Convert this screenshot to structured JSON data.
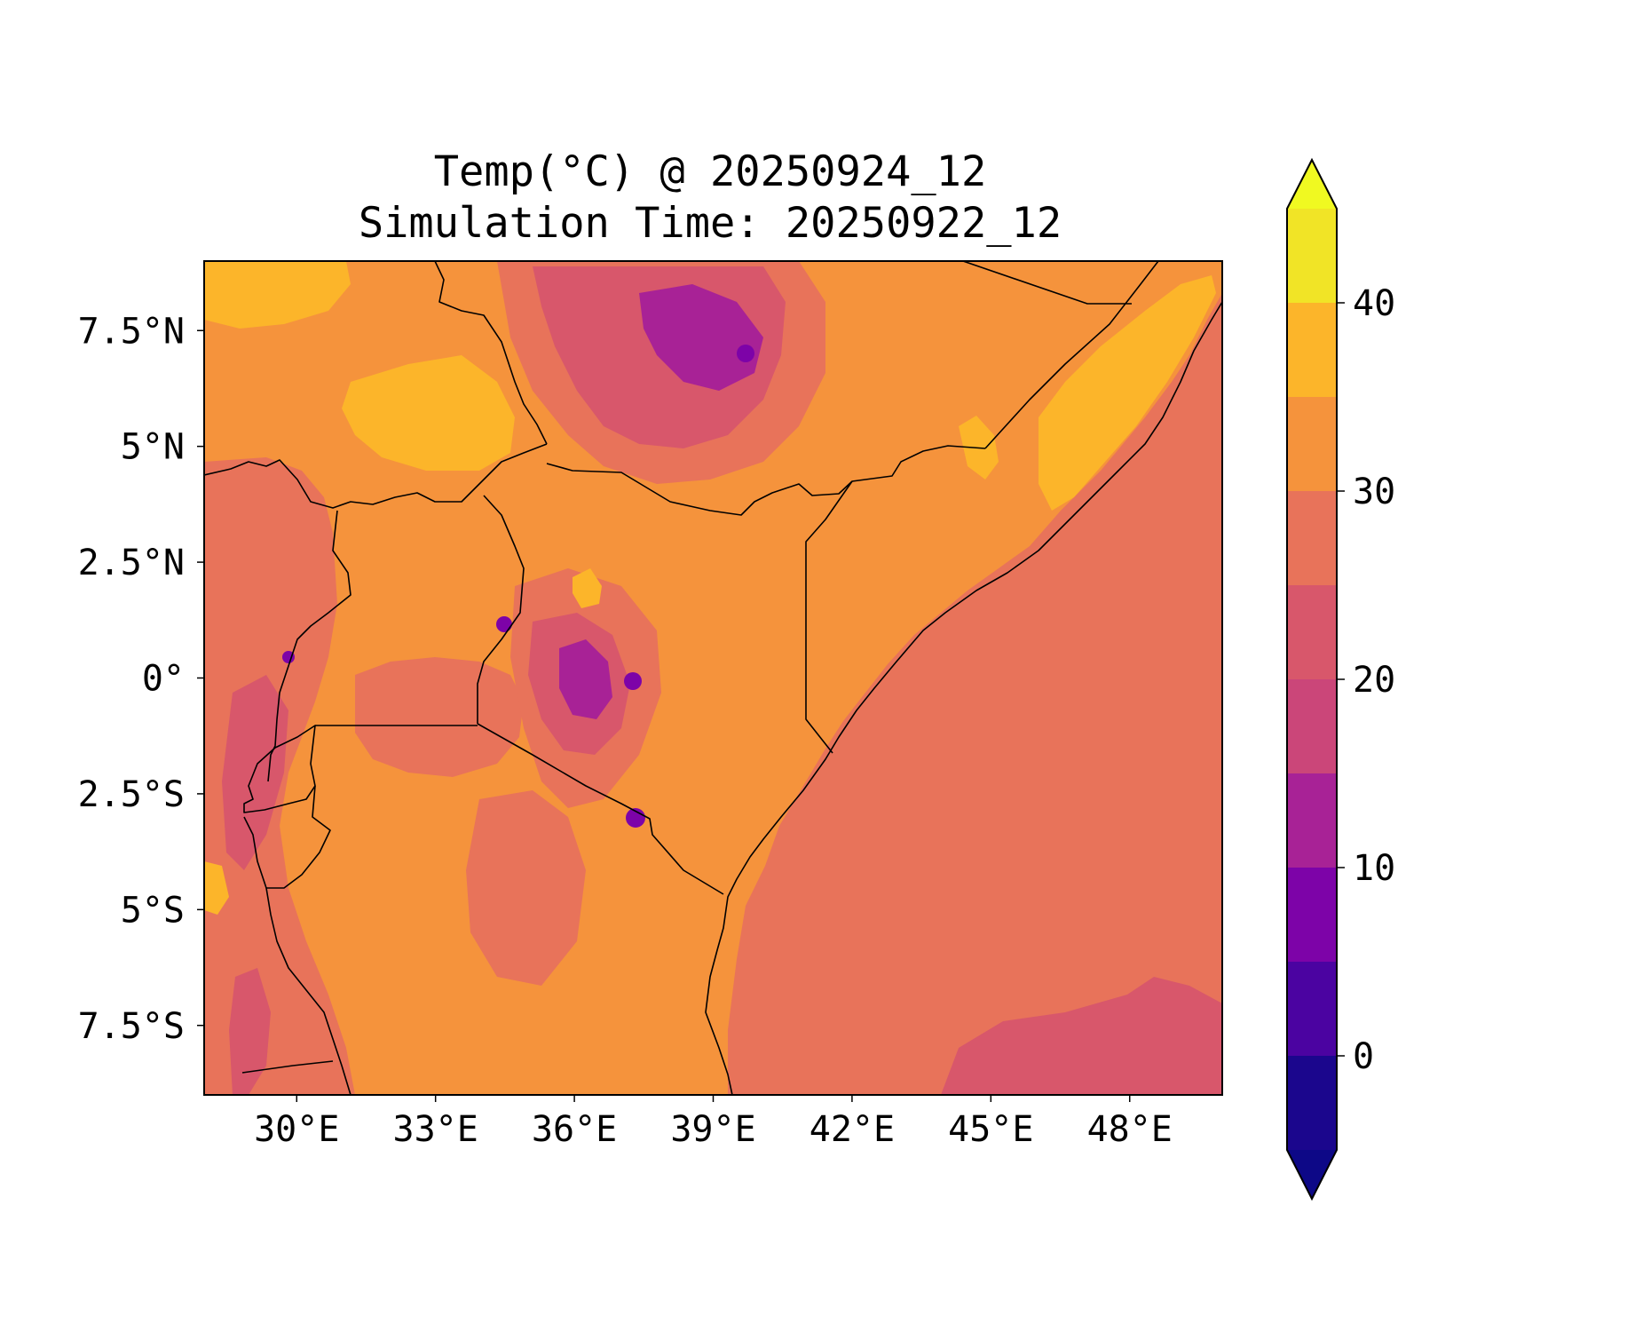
{
  "chart_data": {
    "type": "heatmap",
    "title": "Temp(°C) @ 20250924_12",
    "subtitle": "Simulation Time: 20250922_12",
    "x_ticks": [
      {
        "value": 30,
        "label": "30°E"
      },
      {
        "value": 33,
        "label": "33°E"
      },
      {
        "value": 36,
        "label": "36°E"
      },
      {
        "value": 39,
        "label": "39°E"
      },
      {
        "value": 42,
        "label": "42°E"
      },
      {
        "value": 45,
        "label": "45°E"
      },
      {
        "value": 48,
        "label": "48°E"
      }
    ],
    "y_ticks": [
      {
        "value": 7.5,
        "label": "7.5°N"
      },
      {
        "value": 5,
        "label": "5°N"
      },
      {
        "value": 2.5,
        "label": "2.5°N"
      },
      {
        "value": 0,
        "label": "0°"
      },
      {
        "value": -2.5,
        "label": "2.5°S"
      },
      {
        "value": -5,
        "label": "5°S"
      },
      {
        "value": -7.5,
        "label": "7.5°S"
      }
    ],
    "xlim": [
      28,
      50
    ],
    "ylim": [
      -9,
      9
    ],
    "colorbar": {
      "levels": [
        -5,
        0,
        5,
        10,
        15,
        20,
        25,
        30,
        35,
        40,
        45
      ],
      "colors": [
        "#1b068d",
        "#4b03a1",
        "#7d03a8",
        "#a82296",
        "#cb4679",
        "#d8576b",
        "#e8735a",
        "#f5933c",
        "#fcb52a",
        "#f1e426"
      ],
      "under_color": "#0d0887",
      "over_color": "#f0f921",
      "ticks": [
        {
          "value": 0,
          "label": "0"
        },
        {
          "value": 10,
          "label": "10"
        },
        {
          "value": 20,
          "label": "20"
        },
        {
          "value": 30,
          "label": "30"
        },
        {
          "value": 40,
          "label": "40"
        }
      ],
      "extend": "both"
    },
    "grid": false
  }
}
